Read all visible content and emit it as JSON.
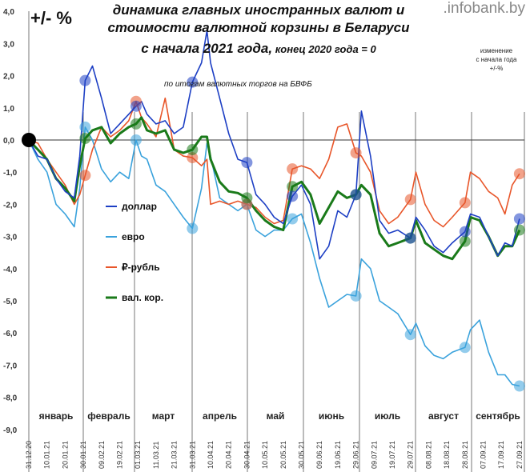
{
  "chart_data": {
    "type": "line",
    "title": "динамика главных иностранных валют и стоимости валютной корзины в Беларуси",
    "title_line3_a": "с начала 2021 года,",
    "title_line3_b": " конец 2020 года = 0",
    "subtitle": "по итогам валютных торгов на БВФБ",
    "unit_label": "+/- %",
    "brand": ".infobank.by",
    "side_note": [
      "изменение",
      "с начала года",
      "+/-%"
    ],
    "ylim": [
      -9,
      4
    ],
    "y_ticks": [
      "4,0",
      "3,0",
      "2,0",
      "1,0",
      "0,0",
      "-1,0",
      "-2,0",
      "-3,0",
      "-4,0",
      "-5,0",
      "-6,0",
      "-7,0",
      "-8,0",
      "-9,0"
    ],
    "x_ticks": [
      "31.12.20",
      "10.01.21",
      "20.01.21",
      "30.01.21",
      "09.02.21",
      "19.02.21",
      "01.03.21",
      "11.03.21",
      "21.03.21",
      "31.03.21",
      "10.04.21",
      "20.04.21",
      "30.04.21",
      "10.05.21",
      "20.05.21",
      "30.05.21",
      "09.06.21",
      "19.06.21",
      "29.06.21",
      "09.07.21",
      "19.07.21",
      "29.07.21",
      "08.08.21",
      "18.08.21",
      "28.08.21",
      "07.09.21",
      "17.09.21",
      "27.09.21"
    ],
    "months": [
      "январь",
      "февраль",
      "март",
      "апрель",
      "май",
      "июнь",
      "июль",
      "август",
      "сентябрь"
    ],
    "x_days": [
      0,
      5,
      10,
      15,
      20,
      25,
      28,
      31,
      35,
      40,
      45,
      50,
      55,
      59,
      62,
      65,
      70,
      75,
      80,
      85,
      90,
      95,
      98,
      100,
      105,
      110,
      115,
      120,
      125,
      130,
      135,
      140,
      145,
      150,
      155,
      160,
      165,
      170,
      175,
      180,
      183,
      188,
      193,
      198,
      203,
      210,
      213,
      218,
      223,
      228,
      233,
      240,
      243,
      248,
      253,
      258,
      262,
      266,
      270
    ],
    "series": [
      {
        "name": "доллар",
        "color": "#1d3fc4",
        "values": [
          0,
          -0.5,
          -0.6,
          -1.2,
          -1.6,
          -1.8,
          -0.5,
          1.85,
          2.3,
          1.3,
          0.2,
          0.5,
          0.8,
          1.05,
          1.2,
          0.8,
          0.5,
          0.6,
          0.2,
          0.4,
          1.8,
          2.4,
          3.4,
          2.4,
          1.3,
          0.2,
          -0.6,
          -0.7,
          -1.7,
          -2.0,
          -2.4,
          -2.6,
          -1.75,
          -1.4,
          -2.0,
          -3.7,
          -3.3,
          -2.2,
          -2.4,
          -1.7,
          0.9,
          -0.5,
          -2.5,
          -2.9,
          -2.8,
          -3.05,
          -2.4,
          -2.8,
          -3.3,
          -3.5,
          -3.2,
          -2.85,
          -2.3,
          -2.4,
          -3.0,
          -3.6,
          -3.2,
          -3.3,
          -2.45
        ]
      },
      {
        "name": "евро",
        "color": "#3aa2dc",
        "values": [
          0,
          -0.6,
          -1.0,
          -2.0,
          -2.3,
          -2.7,
          -1.5,
          0.4,
          0.0,
          -0.9,
          -1.3,
          -1.0,
          -1.2,
          0.0,
          -0.5,
          -0.6,
          -1.4,
          -1.6,
          -2.0,
          -2.4,
          -2.75,
          -1.5,
          -0.1,
          -0.5,
          -1.8,
          -2.0,
          -2.2,
          -2.0,
          -2.8,
          -3.0,
          -2.8,
          -2.8,
          -2.45,
          -2.3,
          -3.2,
          -4.3,
          -5.2,
          -5.0,
          -4.8,
          -4.85,
          -3.7,
          -4.0,
          -5.0,
          -5.2,
          -5.4,
          -6.05,
          -5.7,
          -6.4,
          -6.7,
          -6.8,
          -6.6,
          -6.45,
          -5.9,
          -5.6,
          -6.6,
          -7.3,
          -7.3,
          -7.6,
          -7.65
        ]
      },
      {
        "name": "₽-рубль",
        "color": "#e8562a",
        "values": [
          0,
          -0.1,
          -0.6,
          -1.0,
          -1.4,
          -2.0,
          -1.7,
          -1.1,
          -0.3,
          0.4,
          0.1,
          0.3,
          0.6,
          1.2,
          0.7,
          0.5,
          0.1,
          1.3,
          -0.3,
          -0.5,
          -0.55,
          -0.8,
          -0.6,
          -2.0,
          -1.9,
          -2.0,
          -1.9,
          -2.0,
          -2.1,
          -2.4,
          -2.6,
          -2.5,
          -0.9,
          -0.8,
          -0.9,
          -1.2,
          -0.6,
          0.4,
          0.5,
          -0.4,
          -0.5,
          -1.0,
          -2.2,
          -2.6,
          -2.4,
          -1.85,
          -1.0,
          -2.0,
          -2.5,
          -2.7,
          -2.4,
          -1.95,
          -1.0,
          -1.2,
          -1.6,
          -1.8,
          -2.3,
          -1.4,
          -1.05
        ]
      },
      {
        "name": "вал. кор.",
        "color": "#1a7a1a",
        "values": [
          0,
          -0.3,
          -0.6,
          -1.2,
          -1.5,
          -1.9,
          -0.8,
          0.05,
          0.3,
          0.4,
          -0.1,
          0.2,
          0.4,
          0.5,
          0.7,
          0.3,
          0.2,
          0.3,
          -0.3,
          -0.4,
          -0.3,
          0.1,
          0.1,
          -0.6,
          -1.3,
          -1.6,
          -1.65,
          -1.8,
          -2.2,
          -2.5,
          -2.7,
          -2.8,
          -1.45,
          -1.3,
          -1.7,
          -2.6,
          -2.1,
          -1.6,
          -1.8,
          -1.7,
          -1.4,
          -1.7,
          -2.9,
          -3.3,
          -3.2,
          -3.05,
          -2.5,
          -3.2,
          -3.4,
          -3.6,
          -3.7,
          -3.15,
          -2.4,
          -2.5,
          -3.0,
          -3.6,
          -3.3,
          -3.3,
          -2.8
        ]
      }
    ],
    "marker_days": [
      31,
      59,
      90,
      120,
      145,
      180,
      210,
      240,
      270
    ]
  }
}
